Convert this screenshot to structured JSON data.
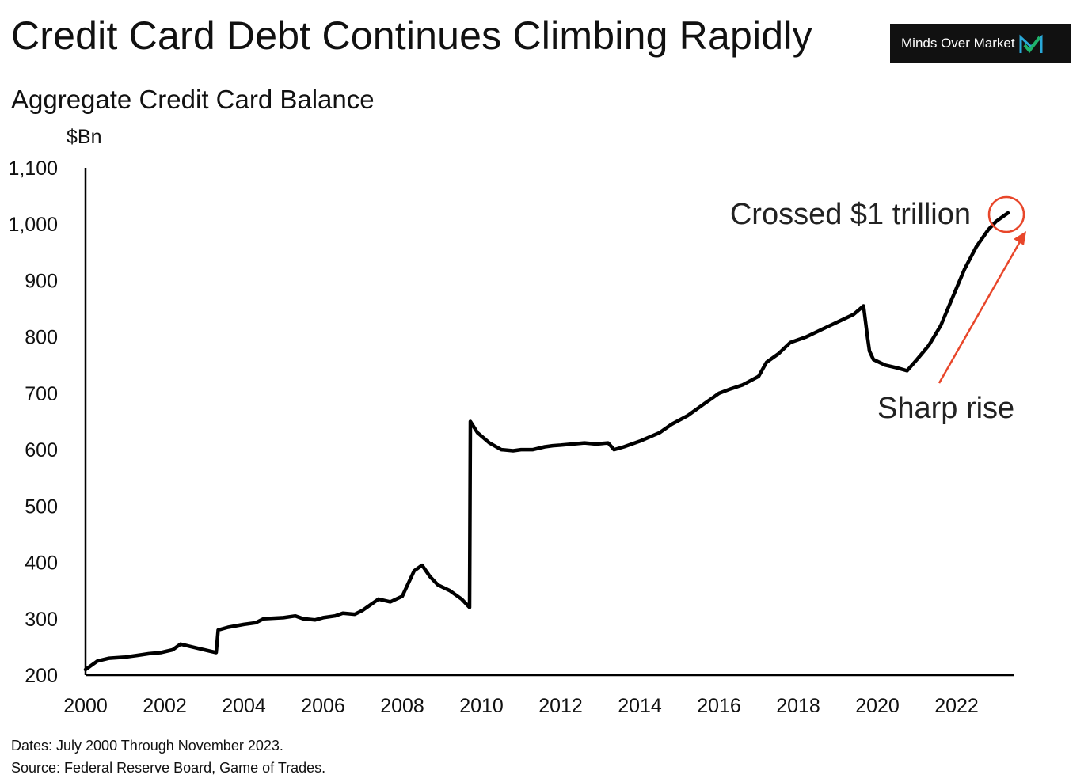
{
  "header": {
    "title": "Credit Card Debt Continues Climbing Rapidly",
    "subtitle": "Aggregate Credit Card Balance",
    "logo": {
      "text": "Minds Over Market",
      "icon": "check-m-icon",
      "background": "#111111",
      "icon_colors": [
        "#1fb36b",
        "#29a8d8"
      ]
    }
  },
  "chart_data": {
    "type": "line",
    "title": "Credit Card Debt Continues Climbing Rapidly",
    "subtitle": "Aggregate Credit Card Balance",
    "ylabel": "$Bn",
    "xlabel": "",
    "xlim": [
      2000,
      2023.6
    ],
    "ylim": [
      200,
      1100
    ],
    "x_ticks": [
      "2000",
      "2002",
      "2004",
      "2006",
      "2008",
      "2010",
      "2012",
      "2014",
      "2016",
      "2018",
      "2020",
      "2022"
    ],
    "y_ticks": [
      "200",
      "300",
      "400",
      "500",
      "600",
      "700",
      "800",
      "900",
      "1,000",
      "1,100"
    ],
    "grid": false,
    "line_color": "#000000",
    "series": [
      {
        "x": [
          2000.0,
          2000.3,
          2000.6,
          2001.0,
          2001.3,
          2001.6,
          2001.9,
          2002.2,
          2002.4,
          2002.7,
          2003.0,
          2003.3,
          2003.35,
          2003.6,
          2004.0,
          2004.3,
          2004.5,
          2005.0,
          2005.3,
          2005.5,
          2005.8,
          2006.0,
          2006.3,
          2006.5,
          2006.8,
          2007.0,
          2007.2,
          2007.4,
          2007.7,
          2008.0,
          2008.2,
          2008.3,
          2008.5,
          2008.7,
          2008.9,
          2009.2,
          2009.5,
          2009.7,
          2009.72,
          2009.9,
          2010.2,
          2010.5,
          2010.8,
          2011.0,
          2011.3,
          2011.6,
          2011.8,
          2012.0,
          2012.3,
          2012.6,
          2012.9,
          2013.2,
          2013.35,
          2013.6,
          2014.0,
          2014.5,
          2014.8,
          2015.2,
          2015.6,
          2015.9,
          2016.0,
          2016.3,
          2016.6,
          2017.0,
          2017.2,
          2017.5,
          2017.8,
          2018.2,
          2018.5,
          2018.8,
          2019.1,
          2019.4,
          2019.65,
          2019.75,
          2019.8,
          2019.9,
          2020.2,
          2020.5,
          2020.75,
          2021.0,
          2021.3,
          2021.6,
          2021.9,
          2022.2,
          2022.5,
          2022.8,
          2023.0,
          2023.2,
          2023.3
        ],
        "y": [
          210,
          225,
          230,
          232,
          235,
          238,
          240,
          245,
          255,
          250,
          245,
          240,
          280,
          285,
          290,
          293,
          300,
          302,
          305,
          300,
          298,
          302,
          305,
          310,
          308,
          315,
          325,
          335,
          330,
          340,
          370,
          385,
          395,
          375,
          360,
          350,
          335,
          320,
          650,
          630,
          612,
          600,
          598,
          600,
          600,
          605,
          607,
          608,
          610,
          612,
          610,
          612,
          600,
          605,
          615,
          630,
          645,
          660,
          680,
          695,
          700,
          708,
          715,
          730,
          755,
          770,
          790,
          800,
          810,
          820,
          830,
          840,
          855,
          800,
          775,
          760,
          750,
          745,
          740,
          760,
          785,
          820,
          870,
          920,
          960,
          990,
          1005,
          1015,
          1020
        ]
      }
    ],
    "annotations": [
      {
        "text": "Crossed $1 trillion",
        "x": 2023.3,
        "y": 1020,
        "marker": "circle",
        "color": "#e8462a"
      },
      {
        "text": "Sharp rise",
        "arrow_from": [
          2021.5,
          760
        ],
        "arrow_to": [
          2022.8,
          1000
        ],
        "color": "#e8462a"
      }
    ]
  },
  "notes": {
    "dates": "Dates: July 2000 Through November 2023.",
    "source": "Source: Federal Reserve Board, Game of Trades."
  }
}
